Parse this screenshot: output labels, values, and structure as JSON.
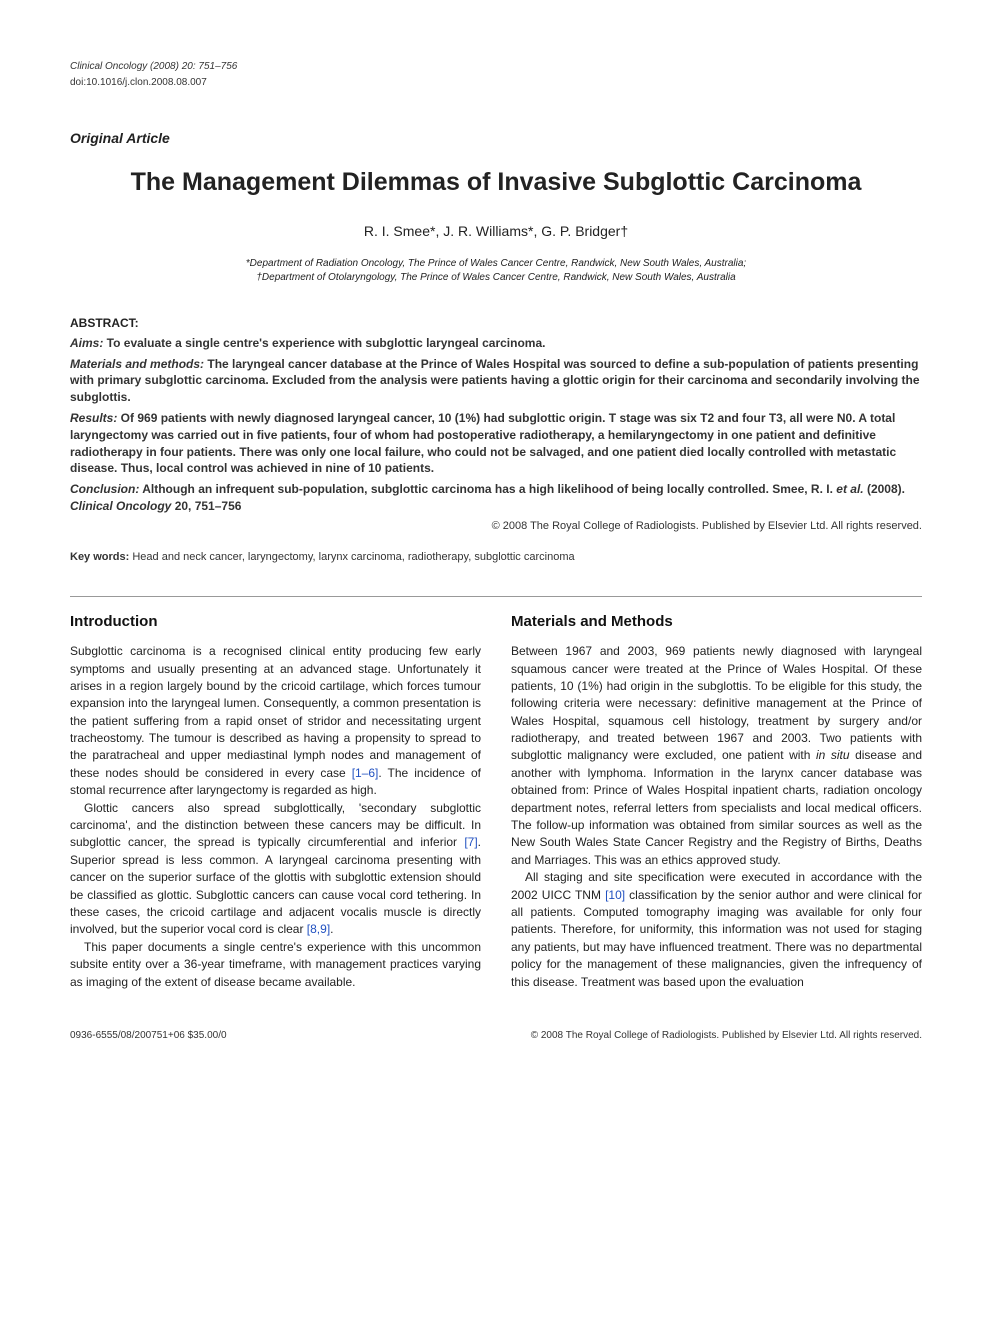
{
  "header": {
    "journal_line": "Clinical Oncology (2008) 20: 751–756",
    "doi_line": "doi:10.1016/j.clon.2008.08.007"
  },
  "article_type": "Original Article",
  "title": "The Management Dilemmas of Invasive Subglottic Carcinoma",
  "authors": "R. I. Smee*, J. R. Williams*, G. P. Bridger†",
  "affiliations": {
    "line1": "*Department of Radiation Oncology, The Prince of Wales Cancer Centre, Randwick, New South Wales, Australia;",
    "line2": "†Department of Otolaryngology, The Prince of Wales Cancer Centre, Randwick, New South Wales, Australia"
  },
  "abstract": {
    "heading": "ABSTRACT:",
    "aims_label": "Aims:",
    "aims_text": " To evaluate a single centre's experience with subglottic laryngeal carcinoma.",
    "mm_label": "Materials and methods:",
    "mm_text": " The laryngeal cancer database at the Prince of Wales Hospital was sourced to define a sub-population of patients presenting with primary subglottic carcinoma. Excluded from the analysis were patients having a glottic origin for their carcinoma and secondarily involving the subglottis.",
    "results_label": "Results:",
    "results_text": " Of 969 patients with newly diagnosed laryngeal cancer, 10 (1%) had subglottic origin. T stage was six T2 and four T3, all were N0. A total laryngectomy was carried out in five patients, four of whom had postoperative radiotherapy, a hemilaryngectomy in one patient and definitive radiotherapy in four patients. There was only one local failure, who could not be salvaged, and one patient died locally controlled with metastatic disease. Thus, local control was achieved in nine of 10 patients.",
    "conclusion_label": "Conclusion:",
    "conclusion_text": " Although an infrequent sub-population, subglottic carcinoma has a high likelihood of being locally controlled. Smee, R. I. ",
    "conclusion_etal": "et al.",
    "conclusion_cite": " (2008). ",
    "conclusion_journal": "Clinical Oncology",
    "conclusion_pages": " 20, 751–756",
    "copyright": "© 2008 The Royal College of Radiologists. Published by Elsevier Ltd. All rights reserved."
  },
  "keywords": {
    "label": "Key words:",
    "text": " Head and neck cancer, laryngectomy, larynx carcinoma, radiotherapy, subglottic carcinoma"
  },
  "left_col": {
    "heading": "Introduction",
    "p1a": "Subglottic carcinoma is a recognised clinical entity producing few early symptoms and usually presenting at an advanced stage. Unfortunately it arises in a region largely bound by the cricoid cartilage, which forces tumour expansion into the laryngeal lumen. Consequently, a common presentation is the patient suffering from a rapid onset of stridor and necessitating urgent tracheostomy. The tumour is described as having a propensity to spread to the paratracheal and upper mediastinal lymph nodes and management of these nodes should be considered in every case ",
    "p1ref1": "[1–6]",
    "p1b": ". The incidence of stomal recurrence after laryngectomy is regarded as high.",
    "p2a": "Glottic cancers also spread subglottically, 'secondary subglottic carcinoma', and the distinction between these cancers may be difficult. In subglottic cancer, the spread is typically circumferential and inferior ",
    "p2ref1": "[7]",
    "p2b": ". Superior spread is less common. A laryngeal carcinoma presenting with cancer on the superior surface of the glottis with subglottic extension should be classified as glottic. Subglottic cancers can cause vocal cord tethering. In these cases, the cricoid cartilage and adjacent vocalis muscle is directly involved, but the superior vocal cord is clear ",
    "p2ref2": "[8,9]",
    "p2c": ".",
    "p3": "This paper documents a single centre's experience with this uncommon subsite entity over a 36-year timeframe, with management practices varying as imaging of the extent of disease became available."
  },
  "right_col": {
    "heading": "Materials and Methods",
    "p1": "Between 1967 and 2003, 969 patients newly diagnosed with laryngeal squamous cancer were treated at the Prince of Wales Hospital. Of these patients, 10 (1%) had origin in the subglottis. To be eligible for this study, the following criteria were necessary: definitive management at the Prince of Wales Hospital, squamous cell histology, treatment by surgery and/or radiotherapy, and treated between 1967 and 2003. Two patients with subglottic malignancy were excluded, one patient with ",
    "p1_italic": "in situ",
    "p1b": " disease and another with lymphoma. Information in the larynx cancer database was obtained from: Prince of Wales Hospital inpatient charts, radiation oncology department notes, referral letters from specialists and local medical officers. The follow-up information was obtained from similar sources as well as the New South Wales State Cancer Registry and the Registry of Births, Deaths and Marriages. This was an ethics approved study.",
    "p2a": "All staging and site specification were executed in accordance with the 2002 UICC TNM ",
    "p2ref1": "[10]",
    "p2b": " classification by the senior author and were clinical for all patients. Computed tomography imaging was available for only four patients. Therefore, for uniformity, this information was not used for staging any patients, but may have influenced treatment. There was no departmental policy for the management of these malignancies, given the infrequency of this disease. Treatment was based upon the evaluation"
  },
  "footer": {
    "left": "0936-6555/08/200751+06 $35.00/0",
    "right": "© 2008 The Royal College of Radiologists. Published by Elsevier Ltd. All rights reserved."
  }
}
